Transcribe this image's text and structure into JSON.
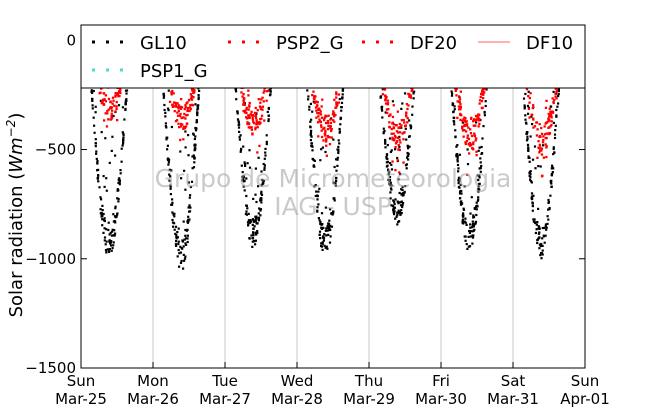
{
  "chart_data": {
    "type": "scatter",
    "title": "",
    "xlabel": "",
    "ylabel": "Solar radiation (",
    "ylabel_units": "Wm",
    "ylabel_exponent": "−2",
    "ylabel_close": ")",
    "ylim": [
      -1500,
      70
    ],
    "yticks": [
      {
        "value": 0,
        "label": "0"
      },
      {
        "value": -500,
        "label": "−500"
      },
      {
        "value": -1000,
        "label": "−1000"
      },
      {
        "value": -1500,
        "label": "−1500"
      }
    ],
    "xlim": [
      "Mar-25",
      "Apr-01"
    ],
    "xticks": [
      {
        "day": "Sun",
        "date": "Mar-25"
      },
      {
        "day": "Mon",
        "date": "Mar-26"
      },
      {
        "day": "Tue",
        "date": "Mar-27"
      },
      {
        "day": "Wed",
        "date": "Mar-28"
      },
      {
        "day": "Thu",
        "date": "Mar-29"
      },
      {
        "day": "Fri",
        "date": "Mar-30"
      },
      {
        "day": "Sat",
        "date": "Mar-31"
      },
      {
        "day": "Sun",
        "date": "Apr-01"
      }
    ],
    "grid": "vertical",
    "legend_position": "top",
    "watermark": [
      "Grupo de Micrometeorologia",
      "IAG - USP"
    ],
    "series": [
      {
        "name": "GL10",
        "color": "#000000",
        "style": "dots",
        "daily_peak": [
          -980,
          -1040,
          -930,
          -980,
          -830,
          -950,
          -980
        ]
      },
      {
        "name": "PSP2_G",
        "color": "#ff0000",
        "style": "dots",
        "daily_peak": [
          -330,
          -380,
          -400,
          -430,
          -470,
          -480,
          -480
        ]
      },
      {
        "name": "DF20",
        "color": "#ff0000",
        "style": "dots",
        "daily_peak": []
      },
      {
        "name": "DF10",
        "color": "#ff8080",
        "style": "line",
        "values": []
      },
      {
        "name": "PSP1_G",
        "color": "#40e0d0",
        "style": "dots",
        "values": []
      }
    ],
    "reference_line": {
      "value": 0,
      "color": "#000000"
    }
  }
}
